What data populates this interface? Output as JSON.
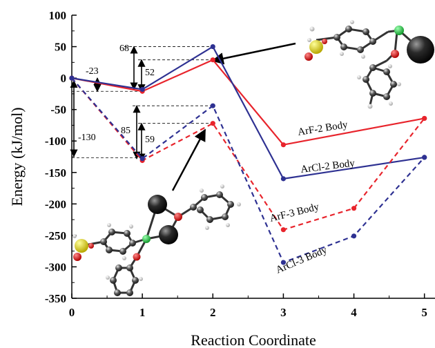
{
  "chart_data": {
    "type": "line",
    "xlabel": "Reaction Coordinate",
    "ylabel": "Energy (kJ/mol)",
    "xlim": [
      0,
      5.15
    ],
    "ylim": [
      -350,
      100
    ],
    "x_ticks": [
      "0",
      "1",
      "2",
      "3",
      "4",
      "5"
    ],
    "y_ticks": [
      "100",
      "50",
      "0",
      "-50",
      "-100",
      "-150",
      "-200",
      "-250",
      "-300",
      "-350"
    ],
    "series": [
      {
        "name": "ArF-2 Body",
        "color": "#e8242c",
        "dash": false,
        "x": [
          0,
          1,
          2,
          3,
          5
        ],
        "y": [
          0,
          -21,
          29,
          -106,
          -64
        ]
      },
      {
        "name": "ArCl-2 Body",
        "color": "#2e3192",
        "dash": false,
        "x": [
          0,
          1,
          2,
          3,
          5
        ],
        "y": [
          0,
          -18,
          50,
          -160,
          -126
        ]
      },
      {
        "name": "ArF-3 Body",
        "color": "#e8242c",
        "dash": true,
        "x": [
          0,
          1,
          2,
          3,
          4,
          5
        ],
        "y": [
          0,
          -131,
          -72,
          -241,
          -207,
          -64
        ]
      },
      {
        "name": "ArCl-3 Body",
        "color": "#2e3192",
        "dash": true,
        "x": [
          0,
          1,
          2,
          3,
          4,
          5
        ],
        "y": [
          0,
          -128,
          -44,
          -293,
          -251,
          -126
        ]
      }
    ],
    "annotations": [
      "-23",
      "68",
      "52",
      "-130",
      "85",
      "59"
    ]
  }
}
